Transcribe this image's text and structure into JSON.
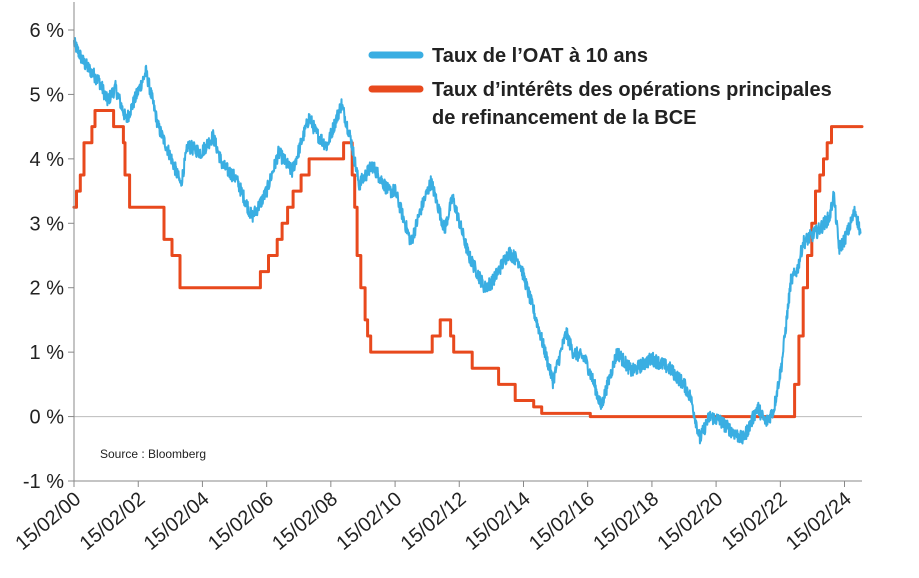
{
  "chart_data": {
    "type": "line",
    "source": "Source : Bloomberg",
    "ylim": [
      -1,
      6
    ],
    "xlim": [
      "2000-02-15",
      "2024-09-01"
    ],
    "y_ticks": [
      {
        "value": 6,
        "label": "6 %"
      },
      {
        "value": 5,
        "label": "5 %"
      },
      {
        "value": 4,
        "label": "4 %"
      },
      {
        "value": 3,
        "label": "3 %"
      },
      {
        "value": 2,
        "label": "2 %"
      },
      {
        "value": 1,
        "label": "1 %"
      },
      {
        "value": 0,
        "label": "0 %"
      },
      {
        "value": -1,
        "label": "-1 %"
      }
    ],
    "x_ticks": [
      {
        "date": "2000-02-15",
        "label": "15/02/00"
      },
      {
        "date": "2002-02-15",
        "label": "15/02/02"
      },
      {
        "date": "2004-02-15",
        "label": "15/02/04"
      },
      {
        "date": "2006-02-15",
        "label": "15/02/06"
      },
      {
        "date": "2008-02-15",
        "label": "15/02/08"
      },
      {
        "date": "2010-02-15",
        "label": "15/02/10"
      },
      {
        "date": "2012-02-15",
        "label": "15/02/12"
      },
      {
        "date": "2014-02-15",
        "label": "15/02/14"
      },
      {
        "date": "2016-02-15",
        "label": "15/02/16"
      },
      {
        "date": "2018-02-15",
        "label": "15/02/18"
      },
      {
        "date": "2020-02-15",
        "label": "15/02/20"
      },
      {
        "date": "2022-02-15",
        "label": "15/02/22"
      },
      {
        "date": "2024-02-15",
        "label": "15/02/24"
      }
    ],
    "legend_position": "top-right",
    "series": [
      {
        "name": "Taux de l’OAT à 10 ans",
        "color": "#3aaee2",
        "step": false,
        "points": [
          [
            "2000-02-15",
            5.8
          ],
          [
            "2000-06-01",
            5.5
          ],
          [
            "2000-12-01",
            5.2
          ],
          [
            "2001-03-01",
            4.9
          ],
          [
            "2001-06-01",
            5.1
          ],
          [
            "2001-10-01",
            4.6
          ],
          [
            "2002-01-01",
            4.9
          ],
          [
            "2002-05-15",
            5.35
          ],
          [
            "2002-10-01",
            4.5
          ],
          [
            "2003-03-01",
            4.0
          ],
          [
            "2003-06-15",
            3.6
          ],
          [
            "2003-09-01",
            4.2
          ],
          [
            "2004-02-01",
            4.1
          ],
          [
            "2004-06-15",
            4.35
          ],
          [
            "2004-10-01",
            3.9
          ],
          [
            "2005-03-01",
            3.7
          ],
          [
            "2005-09-01",
            3.1
          ],
          [
            "2005-12-01",
            3.3
          ],
          [
            "2006-02-15",
            3.5
          ],
          [
            "2006-07-01",
            4.1
          ],
          [
            "2006-12-01",
            3.8
          ],
          [
            "2007-06-15",
            4.65
          ],
          [
            "2007-09-01",
            4.4
          ],
          [
            "2008-01-01",
            4.2
          ],
          [
            "2008-06-15",
            4.85
          ],
          [
            "2008-10-01",
            4.3
          ],
          [
            "2009-01-01",
            3.6
          ],
          [
            "2009-06-01",
            3.9
          ],
          [
            "2009-12-01",
            3.5
          ],
          [
            "2010-02-15",
            3.5
          ],
          [
            "2010-08-15",
            2.7
          ],
          [
            "2010-12-01",
            3.2
          ],
          [
            "2011-04-01",
            3.65
          ],
          [
            "2011-09-01",
            2.9
          ],
          [
            "2011-12-01",
            3.4
          ],
          [
            "2012-06-01",
            2.5
          ],
          [
            "2012-12-01",
            2.0
          ],
          [
            "2013-03-01",
            2.1
          ],
          [
            "2013-09-01",
            2.55
          ],
          [
            "2014-01-01",
            2.4
          ],
          [
            "2014-08-01",
            1.4
          ],
          [
            "2015-01-15",
            0.55
          ],
          [
            "2015-06-15",
            1.3
          ],
          [
            "2015-09-01",
            1.0
          ],
          [
            "2016-01-15",
            0.9
          ],
          [
            "2016-05-01",
            0.5
          ],
          [
            "2016-07-15",
            0.15
          ],
          [
            "2017-01-15",
            1.0
          ],
          [
            "2017-07-01",
            0.7
          ],
          [
            "2018-02-15",
            0.9
          ],
          [
            "2018-09-01",
            0.75
          ],
          [
            "2019-02-15",
            0.5
          ],
          [
            "2019-05-01",
            0.3
          ],
          [
            "2019-08-15",
            -0.35
          ],
          [
            "2019-12-01",
            0.0
          ],
          [
            "2020-03-15",
            -0.05
          ],
          [
            "2020-09-01",
            -0.25
          ],
          [
            "2020-12-15",
            -0.35
          ],
          [
            "2021-03-01",
            -0.15
          ],
          [
            "2021-06-01",
            0.15
          ],
          [
            "2021-09-01",
            -0.1
          ],
          [
            "2021-12-01",
            0.1
          ],
          [
            "2022-03-01",
            0.8
          ],
          [
            "2022-06-15",
            2.1
          ],
          [
            "2022-09-01",
            2.3
          ],
          [
            "2022-11-01",
            2.7
          ],
          [
            "2023-02-01",
            2.8
          ],
          [
            "2023-05-01",
            2.9
          ],
          [
            "2023-09-01",
            3.1
          ],
          [
            "2023-10-15",
            3.45
          ],
          [
            "2023-12-15",
            2.6
          ],
          [
            "2024-02-15",
            2.75
          ],
          [
            "2024-04-01",
            2.9
          ],
          [
            "2024-06-15",
            3.2
          ],
          [
            "2024-08-15",
            2.85
          ]
        ]
      },
      {
        "name": "Taux d’intérêts des opérations principales de refinancement de la BCE",
        "name_lines": [
          "Taux d’intérêts des opérations principales",
          "de refinancement de la BCE"
        ],
        "color": "#e8491d",
        "step": true,
        "points": [
          [
            "2000-02-15",
            3.25
          ],
          [
            "2000-03-15",
            3.5
          ],
          [
            "2000-04-27",
            3.75
          ],
          [
            "2000-06-08",
            4.25
          ],
          [
            "2000-09-06",
            4.5
          ],
          [
            "2000-10-11",
            4.75
          ],
          [
            "2001-05-10",
            4.5
          ],
          [
            "2001-08-30",
            4.25
          ],
          [
            "2001-09-17",
            3.75
          ],
          [
            "2001-11-08",
            3.25
          ],
          [
            "2002-12-05",
            2.75
          ],
          [
            "2003-03-06",
            2.5
          ],
          [
            "2003-06-05",
            2.0
          ],
          [
            "2005-12-06",
            2.25
          ],
          [
            "2006-03-08",
            2.5
          ],
          [
            "2006-06-15",
            2.75
          ],
          [
            "2006-08-09",
            3.0
          ],
          [
            "2006-10-11",
            3.25
          ],
          [
            "2006-12-13",
            3.5
          ],
          [
            "2007-03-14",
            3.75
          ],
          [
            "2007-06-13",
            4.0
          ],
          [
            "2008-07-09",
            4.25
          ],
          [
            "2008-10-15",
            3.75
          ],
          [
            "2008-11-12",
            3.25
          ],
          [
            "2008-12-10",
            2.5
          ],
          [
            "2009-01-21",
            2.0
          ],
          [
            "2009-03-11",
            1.5
          ],
          [
            "2009-04-08",
            1.25
          ],
          [
            "2009-05-13",
            1.0
          ],
          [
            "2011-04-13",
            1.25
          ],
          [
            "2011-07-13",
            1.5
          ],
          [
            "2011-11-09",
            1.25
          ],
          [
            "2011-12-14",
            1.0
          ],
          [
            "2012-07-11",
            0.75
          ],
          [
            "2013-05-08",
            0.5
          ],
          [
            "2013-11-13",
            0.25
          ],
          [
            "2014-06-11",
            0.15
          ],
          [
            "2014-09-10",
            0.05
          ],
          [
            "2016-03-16",
            0.0
          ],
          [
            "2022-07-27",
            0.5
          ],
          [
            "2022-09-14",
            1.25
          ],
          [
            "2022-11-02",
            2.0
          ],
          [
            "2022-12-21",
            2.5
          ],
          [
            "2023-02-08",
            3.0
          ],
          [
            "2023-03-22",
            3.5
          ],
          [
            "2023-05-10",
            3.75
          ],
          [
            "2023-06-21",
            4.0
          ],
          [
            "2023-08-02",
            4.25
          ],
          [
            "2023-09-20",
            4.5
          ],
          [
            "2024-09-01",
            4.5
          ]
        ]
      }
    ]
  }
}
